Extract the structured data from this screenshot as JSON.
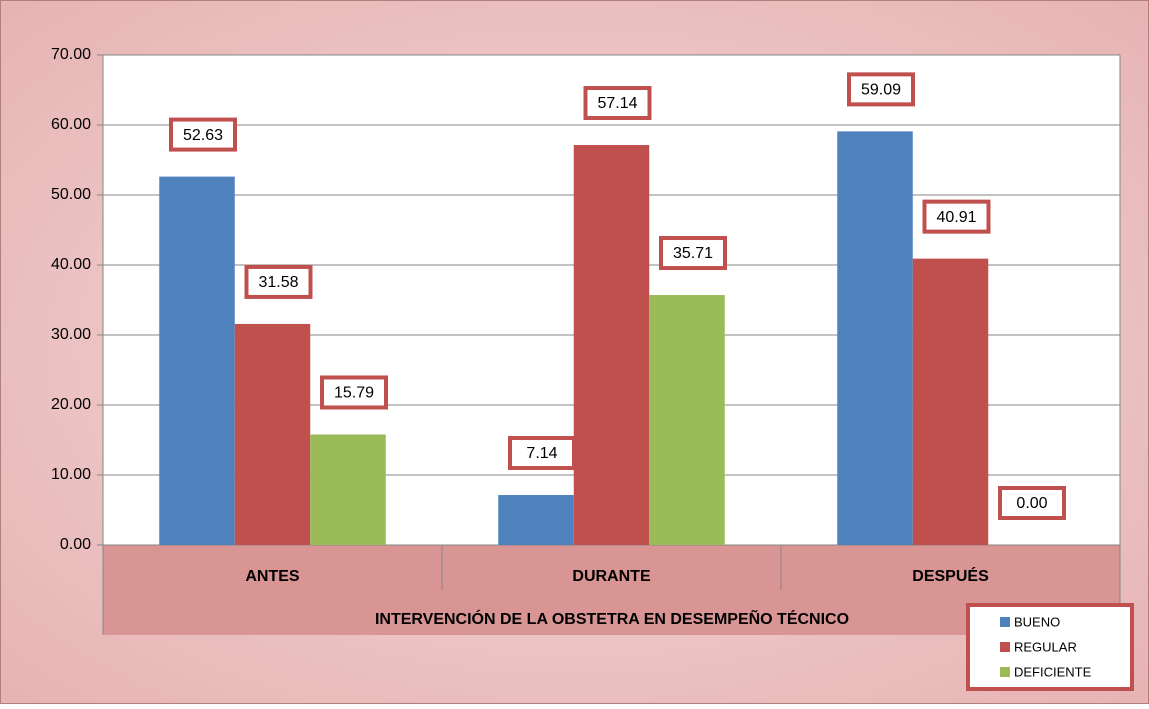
{
  "chart_data": {
    "type": "bar",
    "xlabel": "INTERVENCIÓN DE LA OBSTETRA EN DESEMPEÑO TÉCNICO",
    "categories": [
      "ANTES",
      "DURANTE",
      "DESPUÉS"
    ],
    "series": [
      {
        "name": "BUENO",
        "color": "#4f81bd",
        "values": [
          52.63,
          7.14,
          59.09
        ]
      },
      {
        "name": "REGULAR",
        "color": "#c0504d",
        "values": [
          31.58,
          57.14,
          40.91
        ]
      },
      {
        "name": "DEFICIENTE",
        "color": "#9bbb59",
        "values": [
          15.79,
          35.71,
          0
        ],
        "value_labels": [
          "15.79",
          "35.71",
          "0.00"
        ]
      }
    ],
    "ylim": [
      0,
      70
    ],
    "yticks": [
      {
        "value": 0,
        "label": "0.00"
      },
      {
        "value": 10,
        "label": "10.00"
      },
      {
        "value": 20,
        "label": "20.00"
      },
      {
        "value": 30,
        "label": "30.00"
      },
      {
        "value": 40,
        "label": "40.00"
      },
      {
        "value": 50,
        "label": "50.00"
      },
      {
        "value": 60,
        "label": "60.00"
      },
      {
        "value": 70,
        "label": "70.00"
      }
    ],
    "grid": true,
    "legend": "lower right"
  }
}
